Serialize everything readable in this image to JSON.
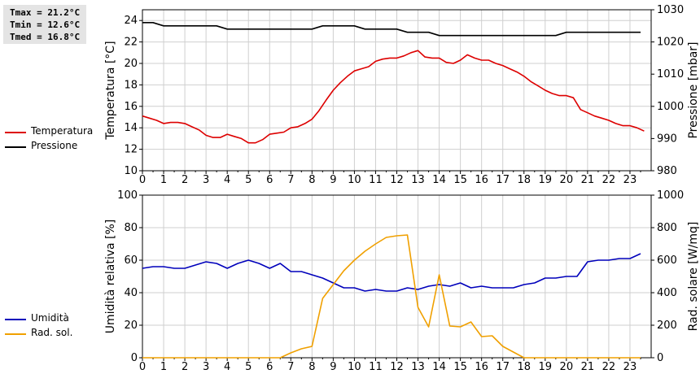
{
  "stats": {
    "tmax": "Tmax = 21.2°C",
    "tmin": "Tmin = 12.6°C",
    "tmed": "Tmed = 16.8°C"
  },
  "colors": {
    "temperature": "#dd0000",
    "pressure": "#000000",
    "humidity": "#0000bb",
    "radiation": "#f0a000",
    "grid": "#cfcfcf"
  },
  "chart_data": [
    {
      "type": "line",
      "xlabel": "",
      "ylabel": "Temperatura [°C]",
      "y2label": "Pressione [mbar]",
      "x_ticks": [
        "0",
        "1",
        "2",
        "3",
        "4",
        "5",
        "6",
        "7",
        "8",
        "9",
        "10",
        "11",
        "12",
        "13",
        "14",
        "15",
        "16",
        "17",
        "18",
        "19",
        "20",
        "21",
        "22",
        "23"
      ],
      "xlim": [
        0,
        24
      ],
      "ylim": [
        10,
        25
      ],
      "y_ticks": [
        "10",
        "12",
        "14",
        "16",
        "18",
        "20",
        "22",
        "24"
      ],
      "y2lim": [
        980,
        1030
      ],
      "y2_ticks": [
        "980",
        "990",
        "1000",
        "1010",
        "1020",
        "1030"
      ],
      "grid": true,
      "legend_position": "left",
      "series": [
        {
          "name": "Temperatura",
          "axis": "left",
          "color": "#dd0000",
          "x": [
            0,
            0.33,
            0.67,
            1,
            1.33,
            1.67,
            2,
            2.33,
            2.67,
            3,
            3.33,
            3.67,
            4,
            4.33,
            4.67,
            5,
            5.33,
            5.67,
            6,
            6.33,
            6.67,
            7,
            7.33,
            7.67,
            8,
            8.33,
            8.67,
            9,
            9.33,
            9.67,
            10,
            10.33,
            10.67,
            11,
            11.33,
            11.67,
            12,
            12.33,
            12.67,
            13,
            13.33,
            13.67,
            14,
            14.33,
            14.67,
            15,
            15.33,
            15.67,
            16,
            16.33,
            16.67,
            17,
            17.33,
            17.67,
            18,
            18.33,
            18.67,
            19,
            19.33,
            19.67,
            20,
            20.33,
            20.67,
            21,
            21.33,
            21.67,
            22,
            22.33,
            22.67,
            23,
            23.33,
            23.67
          ],
          "y": [
            15.1,
            14.9,
            14.7,
            14.4,
            14.5,
            14.5,
            14.4,
            14.1,
            13.8,
            13.3,
            13.1,
            13.1,
            13.4,
            13.2,
            13.0,
            12.6,
            12.6,
            12.9,
            13.4,
            13.5,
            13.6,
            14.0,
            14.1,
            14.4,
            14.8,
            15.6,
            16.6,
            17.5,
            18.2,
            18.8,
            19.3,
            19.5,
            19.7,
            20.2,
            20.4,
            20.5,
            20.5,
            20.7,
            21.0,
            21.2,
            20.6,
            20.5,
            20.5,
            20.1,
            20.0,
            20.3,
            20.8,
            20.5,
            20.3,
            20.3,
            20.0,
            19.8,
            19.5,
            19.2,
            18.8,
            18.3,
            17.9,
            17.5,
            17.2,
            17.0,
            17.0,
            16.8,
            15.7,
            15.4,
            15.1,
            14.9,
            14.7,
            14.4,
            14.2,
            14.2,
            14.0,
            13.7
          ]
        },
        {
          "name": "Pressione",
          "axis": "right",
          "color": "#000000",
          "x": [
            0,
            0.5,
            1,
            1.5,
            2,
            2.5,
            3,
            3.5,
            4,
            4.5,
            5,
            5.5,
            6,
            6.5,
            7,
            7.5,
            8,
            8.5,
            9,
            9.5,
            10,
            10.5,
            11,
            11.5,
            12,
            12.5,
            13,
            13.5,
            14,
            14.5,
            15,
            15.5,
            16,
            16.5,
            17,
            17.5,
            18,
            18.5,
            19,
            19.5,
            20,
            20.5,
            21,
            21.5,
            22,
            22.5,
            23,
            23.5
          ],
          "y": [
            1026,
            1026,
            1025,
            1025,
            1025,
            1025,
            1025,
            1025,
            1024,
            1024,
            1024,
            1024,
            1024,
            1024,
            1024,
            1024,
            1024,
            1025,
            1025,
            1025,
            1025,
            1024,
            1024,
            1024,
            1024,
            1023,
            1023,
            1023,
            1022,
            1022,
            1022,
            1022,
            1022,
            1022,
            1022,
            1022,
            1022,
            1022,
            1022,
            1022,
            1023,
            1023,
            1023,
            1023,
            1023,
            1023,
            1023,
            1023
          ]
        }
      ]
    },
    {
      "type": "line",
      "xlabel": "",
      "ylabel": "Umidità relativa [%]",
      "y2label": "Rad. solare [W/mq]",
      "x_ticks": [
        "0",
        "1",
        "2",
        "3",
        "4",
        "5",
        "6",
        "7",
        "8",
        "9",
        "10",
        "11",
        "12",
        "13",
        "14",
        "15",
        "16",
        "17",
        "18",
        "19",
        "20",
        "21",
        "22",
        "23"
      ],
      "xlim": [
        0,
        24
      ],
      "ylim": [
        0,
        100
      ],
      "y_ticks": [
        "0",
        "20",
        "40",
        "60",
        "80",
        "100"
      ],
      "y2lim": [
        0,
        1000
      ],
      "y2_ticks": [
        "0",
        "200",
        "400",
        "600",
        "800",
        "1000"
      ],
      "grid": true,
      "legend_position": "left",
      "series": [
        {
          "name": "Umidità",
          "axis": "left",
          "color": "#0000bb",
          "x": [
            0,
            0.5,
            1,
            1.5,
            2,
            2.5,
            3,
            3.5,
            4,
            4.5,
            5,
            5.5,
            6,
            6.5,
            7,
            7.5,
            8,
            8.5,
            9,
            9.5,
            10,
            10.5,
            11,
            11.5,
            12,
            12.5,
            13,
            13.5,
            14,
            14.5,
            15,
            15.5,
            16,
            16.5,
            17,
            17.5,
            18,
            18.5,
            19,
            19.5,
            20,
            20.5,
            21,
            21.5,
            22,
            22.5,
            23,
            23.5
          ],
          "y": [
            55,
            56,
            56,
            55,
            55,
            57,
            59,
            58,
            55,
            58,
            60,
            58,
            55,
            58,
            53,
            53,
            51,
            49,
            46,
            43,
            43,
            41,
            42,
            41,
            41,
            43,
            42,
            44,
            45,
            44,
            46,
            43,
            44,
            43,
            43,
            43,
            45,
            46,
            49,
            49,
            50,
            50,
            59,
            60,
            60,
            61,
            61,
            64
          ]
        },
        {
          "name": "Rad. sol.",
          "axis": "right",
          "color": "#f0a000",
          "x": [
            0,
            0.5,
            1,
            1.5,
            2,
            2.5,
            3,
            3.5,
            4,
            4.5,
            5,
            5.5,
            6,
            6.5,
            7,
            7.5,
            8,
            8.5,
            9,
            9.5,
            10,
            10.5,
            11,
            11.5,
            12,
            12.5,
            13,
            13.5,
            14,
            14.5,
            15,
            15.5,
            16,
            16.5,
            17,
            17.5,
            18,
            18.5,
            19,
            19.5,
            20,
            20.5,
            21,
            21.5,
            22,
            22.5,
            23,
            23.5
          ],
          "y": [
            0,
            0,
            0,
            0,
            0,
            0,
            0,
            0,
            0,
            0,
            0,
            0,
            0,
            0,
            30,
            55,
            70,
            365,
            450,
            535,
            600,
            655,
            700,
            740,
            750,
            755,
            310,
            190,
            510,
            195,
            190,
            220,
            130,
            135,
            70,
            35,
            0,
            0,
            0,
            0,
            0,
            0,
            0,
            0,
            0,
            0,
            0,
            0
          ]
        }
      ]
    }
  ]
}
